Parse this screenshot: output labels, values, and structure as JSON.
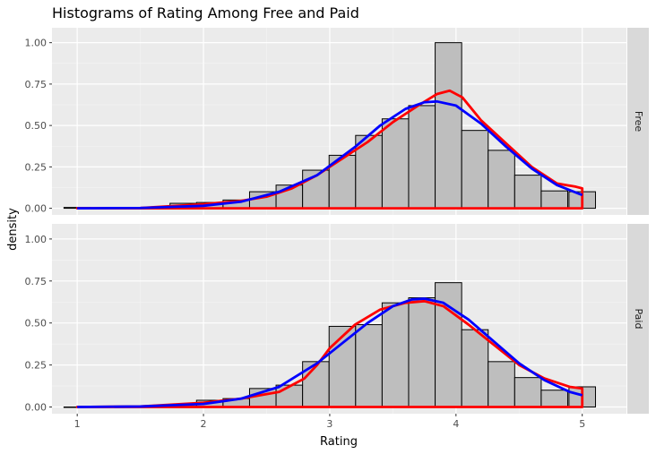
{
  "chart_data": {
    "type": "histogram",
    "title": "Histograms of Rating Among Free and Paid",
    "xlabel": "Rating",
    "ylabel": "density",
    "xlim": [
      0.8,
      5.35
    ],
    "ylim": [
      -0.04,
      1.09
    ],
    "x_ticks": [
      1,
      2,
      3,
      4,
      5
    ],
    "y_ticks": [
      0.0,
      0.25,
      0.5,
      0.75,
      1.0
    ],
    "y_tick_labels": [
      "0.00",
      "0.25",
      "0.50",
      "0.75",
      "1.00"
    ],
    "bin_width": 0.21,
    "bins_x": [
      1.0,
      1.21,
      1.42,
      1.63,
      1.84,
      2.05,
      2.26,
      2.47,
      2.68,
      2.89,
      3.1,
      3.31,
      3.52,
      3.73,
      3.94,
      4.15,
      4.36,
      4.57,
      4.78,
      5.0
    ],
    "grid": true,
    "legend": "none",
    "colors": {
      "panel_bg": "#ebebeb",
      "strip_bg": "#d9d9d9",
      "bar_fill": "#bebebe",
      "bar_stroke": "#000000",
      "kde_line": "#ff0000",
      "normal_line": "#0000ff"
    },
    "facets": [
      {
        "label": "Free",
        "bar_heights": [
          0.005,
          0.0,
          0.0,
          0.0,
          0.03,
          0.035,
          0.05,
          0.1,
          0.14,
          0.23,
          0.32,
          0.44,
          0.54,
          0.62,
          1.0,
          0.47,
          0.35,
          0.2,
          0.105,
          0.1
        ],
        "density_curve_x": [
          1.0,
          1.5,
          2.0,
          2.3,
          2.5,
          2.7,
          2.9,
          3.1,
          3.3,
          3.5,
          3.7,
          3.85,
          3.95,
          4.05,
          4.2,
          4.4,
          4.6,
          4.8,
          4.95,
          5.0
        ],
        "density_curve_y": [
          0.0,
          0.002,
          0.025,
          0.045,
          0.07,
          0.12,
          0.2,
          0.3,
          0.4,
          0.52,
          0.62,
          0.69,
          0.71,
          0.67,
          0.53,
          0.39,
          0.25,
          0.15,
          0.13,
          0.12
        ],
        "normal_curve_x": [
          1.0,
          1.5,
          2.0,
          2.3,
          2.6,
          2.9,
          3.2,
          3.4,
          3.6,
          3.75,
          3.85,
          4.0,
          4.2,
          4.4,
          4.6,
          4.8,
          5.0
        ],
        "normal_curve_y": [
          0.0,
          0.002,
          0.015,
          0.04,
          0.1,
          0.2,
          0.37,
          0.5,
          0.6,
          0.64,
          0.645,
          0.62,
          0.51,
          0.37,
          0.24,
          0.14,
          0.08
        ]
      },
      {
        "label": "Paid",
        "bar_heights": [
          0.0,
          0.0,
          0.005,
          0.008,
          0.015,
          0.04,
          0.05,
          0.11,
          0.13,
          0.27,
          0.48,
          0.49,
          0.62,
          0.65,
          0.74,
          0.46,
          0.27,
          0.175,
          0.1,
          0.12
        ],
        "density_curve_x": [
          1.0,
          1.5,
          2.0,
          2.3,
          2.6,
          2.8,
          2.9,
          3.0,
          3.2,
          3.4,
          3.6,
          3.75,
          3.9,
          4.1,
          4.3,
          4.5,
          4.7,
          4.9,
          5.0
        ],
        "density_curve_y": [
          0.0,
          0.003,
          0.025,
          0.05,
          0.09,
          0.17,
          0.25,
          0.35,
          0.49,
          0.58,
          0.62,
          0.63,
          0.6,
          0.49,
          0.37,
          0.25,
          0.17,
          0.12,
          0.11
        ],
        "normal_curve_x": [
          1.0,
          1.5,
          2.0,
          2.3,
          2.6,
          2.9,
          3.1,
          3.3,
          3.5,
          3.65,
          3.75,
          3.9,
          4.1,
          4.3,
          4.5,
          4.7,
          4.9,
          5.0
        ],
        "normal_curve_y": [
          0.0,
          0.003,
          0.018,
          0.05,
          0.12,
          0.26,
          0.38,
          0.5,
          0.6,
          0.64,
          0.645,
          0.62,
          0.52,
          0.39,
          0.26,
          0.16,
          0.09,
          0.07
        ]
      }
    ]
  }
}
